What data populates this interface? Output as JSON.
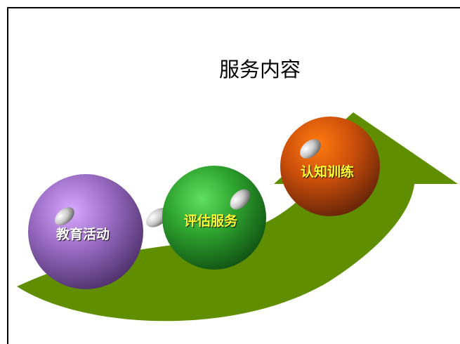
{
  "title": "服务内容",
  "items": [
    {
      "label": "教育活动",
      "color": "#8a5fb0"
    },
    {
      "label": "评估服务",
      "color": "#2e9e2e"
    },
    {
      "label": "认知训练",
      "color": "#d0500a"
    }
  ],
  "arrow_color": "#5f8f00"
}
